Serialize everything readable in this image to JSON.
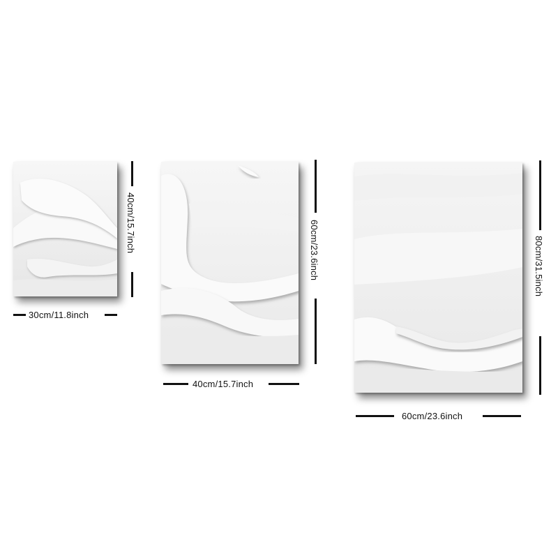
{
  "panels": [
    {
      "width_label": "30cm/11.8inch",
      "height_label": "40cm/15.7inch"
    },
    {
      "width_label": "40cm/15.7inch",
      "height_label": "60cm/23.6inch"
    },
    {
      "width_label": "60cm/23.6inch",
      "height_label": "80cm/31.5inch"
    }
  ],
  "colors": {
    "canvas": "#efefef",
    "paint_highlight": "#fbfbfb",
    "paint_shadow": "#c9c9c9",
    "dimension_lines": "#111111"
  }
}
